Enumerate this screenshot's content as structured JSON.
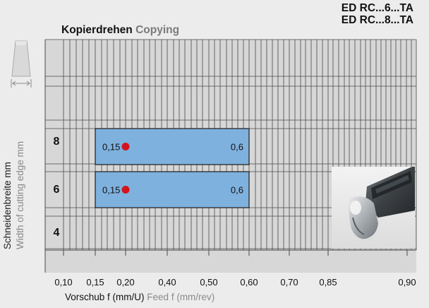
{
  "header": {
    "title_de": "Kopierdrehen",
    "title_en": "Copying",
    "code_1": "ED RC...6...TA",
    "code_2": "ED RC...8...TA"
  },
  "colors": {
    "panel": "#d7d7d7",
    "grid": "#4a4a4a",
    "bar_fill": "#7fb1de",
    "bar_stroke": "#1c1c1c",
    "marker": "#d4141c",
    "background": "#ececec"
  },
  "icons": [
    "insert-shape-icon",
    "cutting-width-arrow-icon"
  ],
  "chart_data": {
    "type": "bar",
    "orientation": "horizontal-range",
    "x_axis": {
      "ticks": [
        "0,10",
        "0,15",
        "0,20",
        "0,40",
        "0,50",
        "0,60",
        "0,70",
        "0,85",
        "0,90"
      ],
      "label_de": "Vorschub f (mm/U)",
      "label_en": "Feed f (mm/rev)"
    },
    "y_axis": {
      "label_de": "Schneidenbreite mm",
      "label_en": "Width of cutting edge mm",
      "categories": [
        "8",
        "6",
        "4"
      ]
    },
    "series": [
      {
        "width": "8",
        "min": 0.15,
        "max": 0.6,
        "min_label": "0,15",
        "max_label": "0,6",
        "recommended": 0.2
      },
      {
        "width": "6",
        "min": 0.15,
        "max": 0.6,
        "min_label": "0,15",
        "max_label": "0,6",
        "recommended": 0.2
      }
    ],
    "grid": true
  }
}
